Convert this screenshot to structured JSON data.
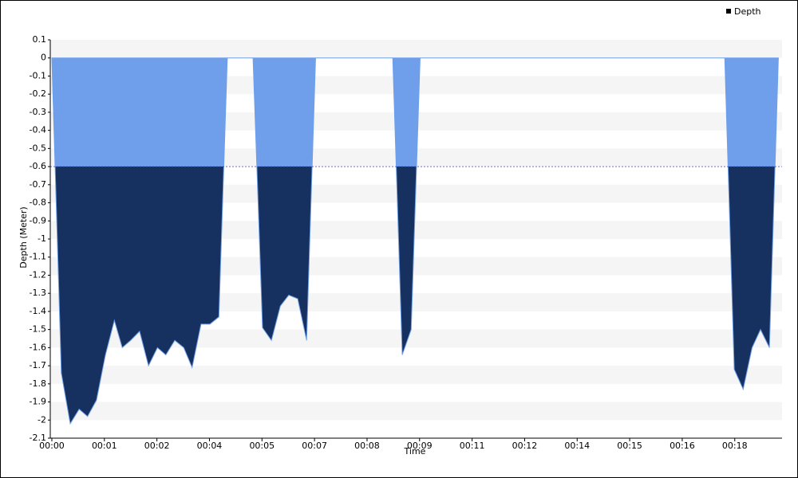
{
  "chart_data": {
    "type": "area",
    "y_label": "Depth (Meter)",
    "x_label": "Time",
    "x": [
      0,
      0.18,
      0.35,
      0.52,
      0.68,
      0.85,
      1.02,
      1.19,
      1.34,
      1.5,
      1.67,
      1.84,
      2.01,
      2.17,
      2.34,
      2.51,
      2.67,
      2.84,
      3.01,
      3.18,
      3.34,
      3.83,
      4.01,
      4.18,
      4.35,
      4.51,
      4.68,
      4.85,
      5.02,
      6.49,
      6.67,
      6.84,
      7.01,
      12.81,
      12.99,
      13.16,
      13.33,
      13.49,
      13.66,
      13.83
    ],
    "series": [
      {
        "name": "Depth",
        "color": "#16305f",
        "values": [
          0,
          -1.74,
          -2.02,
          -1.94,
          -1.98,
          -1.89,
          -1.64,
          -1.45,
          -1.6,
          -1.56,
          -1.51,
          -1.7,
          -1.6,
          -1.64,
          -1.56,
          -1.6,
          -1.71,
          -1.47,
          -1.47,
          -1.43,
          0,
          0,
          -1.49,
          -1.56,
          -1.37,
          -1.31,
          -1.33,
          -1.56,
          0,
          0,
          -1.64,
          -1.5,
          0,
          0,
          -1.72,
          -1.83,
          -1.6,
          -1.5,
          -1.6,
          0
        ]
      }
    ],
    "threshold": -0.6,
    "above_threshold_color": "#6f9fea",
    "threshold_line_color": "#3b3bd8",
    "xlim": [
      -0.03,
      13.9
    ],
    "ylim": [
      -2.1,
      0.1
    ],
    "xticks": [
      {
        "value": 0,
        "label": "00:00"
      },
      {
        "value": 1,
        "label": "00:01"
      },
      {
        "value": 2,
        "label": "00:02"
      },
      {
        "value": 3,
        "label": "00:04"
      },
      {
        "value": 4,
        "label": "00:05"
      },
      {
        "value": 5,
        "label": "00:07"
      },
      {
        "value": 6,
        "label": "00:08"
      },
      {
        "value": 7,
        "label": "00:09"
      },
      {
        "value": 8,
        "label": "00:11"
      },
      {
        "value": 9,
        "label": "00:12"
      },
      {
        "value": 10,
        "label": "00:14"
      },
      {
        "value": 11,
        "label": "00:15"
      },
      {
        "value": 12,
        "label": "00:16"
      },
      {
        "value": 13,
        "label": "00:18"
      }
    ],
    "yticks": [
      0.1,
      0,
      -0.1,
      -0.2,
      -0.3,
      -0.4,
      -0.5,
      -0.6,
      -0.7,
      -0.8,
      -0.9,
      -1,
      -1.1,
      -1.2,
      -1.3,
      -1.4,
      -1.5,
      -1.6,
      -1.7,
      -1.8,
      -1.9,
      -2,
      -2.1
    ],
    "grid": "bands",
    "legend": "top-right"
  }
}
